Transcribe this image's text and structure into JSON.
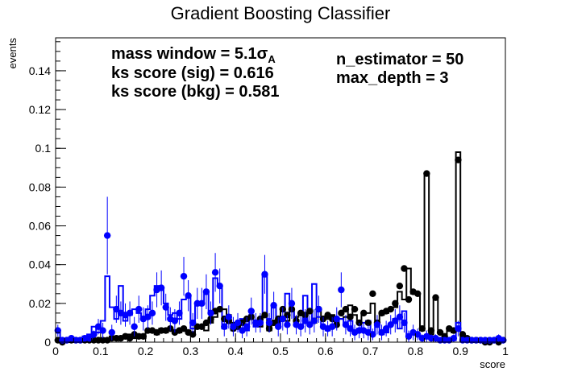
{
  "chart_data": {
    "type": "scatter",
    "title": "Gradient Boosting Classifier",
    "xlabel": "score",
    "ylabel": "events",
    "xlim": [
      0,
      1
    ],
    "ylim": [
      0,
      0.157
    ],
    "x_ticks": [
      0,
      0.1,
      0.2,
      0.3,
      0.4,
      0.5,
      0.6,
      0.7,
      0.8,
      0.9,
      1
    ],
    "x_tick_labels": [
      "0",
      "0.1",
      "0.2",
      "0.3",
      "0.4",
      "0.5",
      "0.6",
      "0.7",
      "0.8",
      "0.9",
      "1"
    ],
    "y_ticks": [
      0,
      0.02,
      0.04,
      0.06,
      0.08,
      0.1,
      0.12,
      0.14
    ],
    "y_tick_labels": [
      "0",
      "0.02",
      "0.04",
      "0.06",
      "0.08",
      "0.1",
      "0.12",
      "0.14"
    ],
    "annotations": {
      "mass_window_prefix": "mass window = 5.1",
      "mass_window_sigma": "σ",
      "mass_window_sub": "A",
      "ks_sig": "ks score (sig) = 0.616",
      "ks_bkg": "ks score (bkg) = 0.581",
      "n_estimator": "n_estimator = 50",
      "max_depth": "max_depth = 3"
    },
    "colors": {
      "signal": "#0000ff",
      "background": "#000000"
    },
    "bin_width": 0.01,
    "series": [
      {
        "style": "black-hist",
        "values": [
          0.002,
          0,
          0,
          0,
          0.001,
          0.001,
          0.002,
          0.002,
          0.001,
          0.001,
          0.001,
          0.002,
          0.003,
          0.002,
          0.003,
          0.002,
          0.004,
          0.002,
          0.004,
          0.002,
          0.005,
          0.006,
          0.004,
          0.007,
          0.005,
          0.006,
          0.005,
          0.005,
          0.007,
          0.006,
          0.005,
          0.008,
          0.007,
          0.006,
          0.01,
          0.013,
          0.016,
          0.017,
          0.014,
          0.01,
          0.008,
          0.011,
          0.009,
          0.012,
          0.01,
          0.008,
          0.013,
          0.006,
          0.009,
          0.01,
          0.016,
          0.011,
          0.017,
          0.013,
          0.015,
          0.012,
          0.016,
          0.01,
          0.017,
          0.013,
          0.012,
          0.014,
          0.01,
          0.012,
          0.013,
          0.019,
          0.014,
          0.011,
          0.015,
          0.015,
          0.02,
          0.011,
          0.014,
          0.015,
          0.017,
          0.018,
          0.026,
          0.022,
          0.038,
          0.025,
          0.025,
          0.006,
          0.087,
          0.004,
          0.023,
          0.005,
          0.003,
          0.007,
          0.005,
          0.098,
          0.004,
          0.002,
          0.001,
          0,
          0.001,
          0.001,
          0,
          0.001,
          0,
          0.001
        ]
      },
      {
        "style": "blue-hist",
        "values": [
          0.006,
          0.001,
          0.001,
          0.002,
          0.001,
          0.002,
          0.003,
          0.004,
          0.008,
          0.005,
          0.011,
          0.034,
          0.018,
          0.012,
          0.029,
          0.011,
          0.014,
          0.017,
          0.015,
          0.012,
          0.017,
          0.024,
          0.029,
          0.027,
          0.02,
          0.014,
          0.015,
          0.012,
          0.022,
          0.024,
          0.007,
          0.019,
          0.02,
          0.026,
          0.015,
          0.033,
          0.029,
          0.007,
          0.011,
          0.006,
          0.007,
          0.012,
          0.006,
          0.014,
          0.008,
          0.012,
          0.035,
          0.012,
          0.019,
          0.008,
          0.012,
          0.025,
          0.016,
          0.009,
          0.009,
          0.024,
          0.009,
          0.03,
          0.013,
          0.008,
          0.006,
          0.008,
          0.01,
          0.012,
          0.009,
          0.011,
          0.005,
          0.007,
          0.01,
          0.011,
          0.005,
          0.008,
          0.004,
          0.005,
          0.009,
          0.012,
          0.007,
          0.016,
          0.003,
          0.005,
          0.004,
          0.002,
          0.003,
          0.002,
          0.002,
          0.001,
          0.001,
          0.001,
          0.001,
          0.01,
          0.001,
          0.001,
          0.001,
          0.001,
          0.001,
          0.001,
          0.001,
          0.001,
          0.002,
          0.001
        ]
      },
      {
        "style": "black-markers",
        "points": [
          [
            0.005,
            0.001
          ],
          [
            0.015,
            0
          ],
          [
            0.025,
            0.001
          ],
          [
            0.035,
            0.001
          ],
          [
            0.045,
            0.001
          ],
          [
            0.055,
            0.001
          ],
          [
            0.065,
            0.001
          ],
          [
            0.075,
            0.001
          ],
          [
            0.085,
            0.001
          ],
          [
            0.095,
            0.001
          ],
          [
            0.105,
            0.001
          ],
          [
            0.115,
            0.001
          ],
          [
            0.125,
            0.002
          ],
          [
            0.135,
            0.002
          ],
          [
            0.145,
            0.002
          ],
          [
            0.155,
            0.003
          ],
          [
            0.165,
            0.002
          ],
          [
            0.175,
            0.004
          ],
          [
            0.185,
            0.003
          ],
          [
            0.195,
            0.003
          ],
          [
            0.205,
            0.006
          ],
          [
            0.215,
            0.006
          ],
          [
            0.225,
            0.005
          ],
          [
            0.235,
            0.006
          ],
          [
            0.245,
            0.006
          ],
          [
            0.255,
            0.007
          ],
          [
            0.265,
            0.005
          ],
          [
            0.275,
            0.006
          ],
          [
            0.285,
            0.007
          ],
          [
            0.295,
            0.005
          ],
          [
            0.305,
            0.004
          ],
          [
            0.315,
            0.008
          ],
          [
            0.325,
            0.008
          ],
          [
            0.335,
            0.01
          ],
          [
            0.345,
            0.012
          ],
          [
            0.355,
            0.016
          ],
          [
            0.365,
            0.017
          ],
          [
            0.375,
            0.012
          ],
          [
            0.385,
            0.011
          ],
          [
            0.395,
            0.007
          ],
          [
            0.405,
            0.008
          ],
          [
            0.415,
            0.01
          ],
          [
            0.425,
            0.012
          ],
          [
            0.435,
            0.013
          ],
          [
            0.445,
            0.01
          ],
          [
            0.455,
            0.012
          ],
          [
            0.465,
            0.014
          ],
          [
            0.475,
            0.007
          ],
          [
            0.485,
            0.01
          ],
          [
            0.495,
            0.012
          ],
          [
            0.505,
            0.017
          ],
          [
            0.515,
            0.014
          ],
          [
            0.525,
            0.017
          ],
          [
            0.535,
            0.011
          ],
          [
            0.545,
            0.015
          ],
          [
            0.555,
            0.014
          ],
          [
            0.565,
            0.016
          ],
          [
            0.575,
            0.011
          ],
          [
            0.585,
            0.017
          ],
          [
            0.595,
            0.012
          ],
          [
            0.605,
            0.014
          ],
          [
            0.615,
            0.012
          ],
          [
            0.625,
            0.009
          ],
          [
            0.635,
            0.015
          ],
          [
            0.645,
            0.017
          ],
          [
            0.655,
            0.013
          ],
          [
            0.665,
            0.017
          ],
          [
            0.675,
            0.01
          ],
          [
            0.685,
            0.015
          ],
          [
            0.695,
            0.01
          ],
          [
            0.705,
            0.025
          ],
          [
            0.715,
            0.01
          ],
          [
            0.725,
            0.015
          ],
          [
            0.735,
            0.016
          ],
          [
            0.745,
            0.017
          ],
          [
            0.755,
            0.02
          ],
          [
            0.765,
            0.029
          ],
          [
            0.775,
            0.038
          ],
          [
            0.785,
            0.022
          ],
          [
            0.795,
            0.026
          ],
          [
            0.805,
            0.025
          ],
          [
            0.815,
            0.007
          ],
          [
            0.825,
            0.087
          ],
          [
            0.835,
            0.006
          ],
          [
            0.845,
            0.023
          ],
          [
            0.855,
            0.005
          ],
          [
            0.865,
            0.003
          ],
          [
            0.875,
            0.007
          ],
          [
            0.885,
            0.006
          ],
          [
            0.895,
            0.094
          ],
          [
            0.905,
            0.004
          ],
          [
            0.915,
            0.002
          ],
          [
            0.925,
            0.001
          ],
          [
            0.935,
            0.001
          ],
          [
            0.945,
            0.001
          ],
          [
            0.955,
            0
          ],
          [
            0.965,
            0
          ],
          [
            0.975,
            0.001
          ],
          [
            0.985,
            0
          ],
          [
            0.995,
            0.001
          ]
        ]
      },
      {
        "style": "blue-markers",
        "points": [
          [
            0.005,
            0.006,
            0.003
          ],
          [
            0.015,
            0.001,
            0.001
          ],
          [
            0.025,
            0.001,
            0.001
          ],
          [
            0.035,
            0.002,
            0.001
          ],
          [
            0.045,
            0.001,
            0.001
          ],
          [
            0.055,
            0.001,
            0.001
          ],
          [
            0.065,
            0.002,
            0.001
          ],
          [
            0.075,
            0.002,
            0.002
          ],
          [
            0.085,
            0.004,
            0.002
          ],
          [
            0.095,
            0.008,
            0.004
          ],
          [
            0.105,
            0.006,
            0.004
          ],
          [
            0.115,
            0.055,
            0.02
          ],
          [
            0.125,
            0.005,
            0.004
          ],
          [
            0.135,
            0.017,
            0.007
          ],
          [
            0.145,
            0.015,
            0.006
          ],
          [
            0.155,
            0.014,
            0.006
          ],
          [
            0.165,
            0.015,
            0.006
          ],
          [
            0.175,
            0.008,
            0.005
          ],
          [
            0.185,
            0.017,
            0.007
          ],
          [
            0.195,
            0.012,
            0.006
          ],
          [
            0.205,
            0.013,
            0.006
          ],
          [
            0.215,
            0.015,
            0.006
          ],
          [
            0.225,
            0.027,
            0.009
          ],
          [
            0.235,
            0.028,
            0.009
          ],
          [
            0.245,
            0.018,
            0.007
          ],
          [
            0.255,
            0.012,
            0.006
          ],
          [
            0.265,
            0.011,
            0.006
          ],
          [
            0.275,
            0.015,
            0.006
          ],
          [
            0.285,
            0.034,
            0.01
          ],
          [
            0.295,
            0.024,
            0.008
          ],
          [
            0.305,
            0.01,
            0.005
          ],
          [
            0.315,
            0.02,
            0.008
          ],
          [
            0.325,
            0.02,
            0.008
          ],
          [
            0.335,
            0.026,
            0.009
          ],
          [
            0.345,
            0.015,
            0.006
          ],
          [
            0.355,
            0.036,
            0.01
          ],
          [
            0.365,
            0.029,
            0.009
          ],
          [
            0.375,
            0.008,
            0.005
          ],
          [
            0.385,
            0.013,
            0.006
          ],
          [
            0.395,
            0.008,
            0.005
          ],
          [
            0.405,
            0.01,
            0.005
          ],
          [
            0.415,
            0.006,
            0.004
          ],
          [
            0.425,
            0.008,
            0.005
          ],
          [
            0.435,
            0.016,
            0.007
          ],
          [
            0.445,
            0.01,
            0.005
          ],
          [
            0.455,
            0.01,
            0.005
          ],
          [
            0.465,
            0.035,
            0.01
          ],
          [
            0.475,
            0.01,
            0.005
          ],
          [
            0.485,
            0.019,
            0.007
          ],
          [
            0.495,
            0.008,
            0.005
          ],
          [
            0.505,
            0.012,
            0.006
          ],
          [
            0.515,
            0.009,
            0.005
          ],
          [
            0.525,
            0.02,
            0.008
          ],
          [
            0.535,
            0.009,
            0.005
          ],
          [
            0.545,
            0.008,
            0.005
          ],
          [
            0.555,
            0.011,
            0.006
          ],
          [
            0.565,
            0.009,
            0.005
          ],
          [
            0.575,
            0.011,
            0.006
          ],
          [
            0.585,
            0.017,
            0.007
          ],
          [
            0.595,
            0.008,
            0.005
          ],
          [
            0.605,
            0.007,
            0.004
          ],
          [
            0.615,
            0.008,
            0.005
          ],
          [
            0.625,
            0.012,
            0.006
          ],
          [
            0.635,
            0.027,
            0.009
          ],
          [
            0.645,
            0.009,
            0.005
          ],
          [
            0.655,
            0.007,
            0.004
          ],
          [
            0.665,
            0.005,
            0.004
          ],
          [
            0.675,
            0.006,
            0.004
          ],
          [
            0.685,
            0.006,
            0.004
          ],
          [
            0.695,
            0.005,
            0.004
          ],
          [
            0.705,
            0.004,
            0.003
          ],
          [
            0.715,
            0.009,
            0.005
          ],
          [
            0.725,
            0.005,
            0.004
          ],
          [
            0.735,
            0.007,
            0.004
          ],
          [
            0.745,
            0.009,
            0.005
          ],
          [
            0.755,
            0.011,
            0.006
          ],
          [
            0.765,
            0.013,
            0.006
          ],
          [
            0.775,
            0.01,
            0.005
          ],
          [
            0.785,
            0.003,
            0.003
          ],
          [
            0.795,
            0.005,
            0.004
          ],
          [
            0.805,
            0.004,
            0.003
          ],
          [
            0.815,
            0.002,
            0.002
          ],
          [
            0.825,
            0.003,
            0.003
          ],
          [
            0.835,
            0.002,
            0.002
          ],
          [
            0.845,
            0.002,
            0.002
          ],
          [
            0.855,
            0.001,
            0.001
          ],
          [
            0.865,
            0.001,
            0.001
          ],
          [
            0.875,
            0.001,
            0.001
          ],
          [
            0.885,
            0.002,
            0.002
          ],
          [
            0.895,
            0.007,
            0.004
          ],
          [
            0.905,
            0.001,
            0.001
          ],
          [
            0.915,
            0.001,
            0.001
          ],
          [
            0.925,
            0.001,
            0.001
          ],
          [
            0.935,
            0.001,
            0.001
          ],
          [
            0.945,
            0.001,
            0.001
          ],
          [
            0.955,
            0.001,
            0.001
          ],
          [
            0.965,
            0.001,
            0.001
          ],
          [
            0.975,
            0.001,
            0.001
          ],
          [
            0.985,
            0.002,
            0.002
          ],
          [
            0.995,
            0.001,
            0.001
          ]
        ]
      }
    ]
  }
}
